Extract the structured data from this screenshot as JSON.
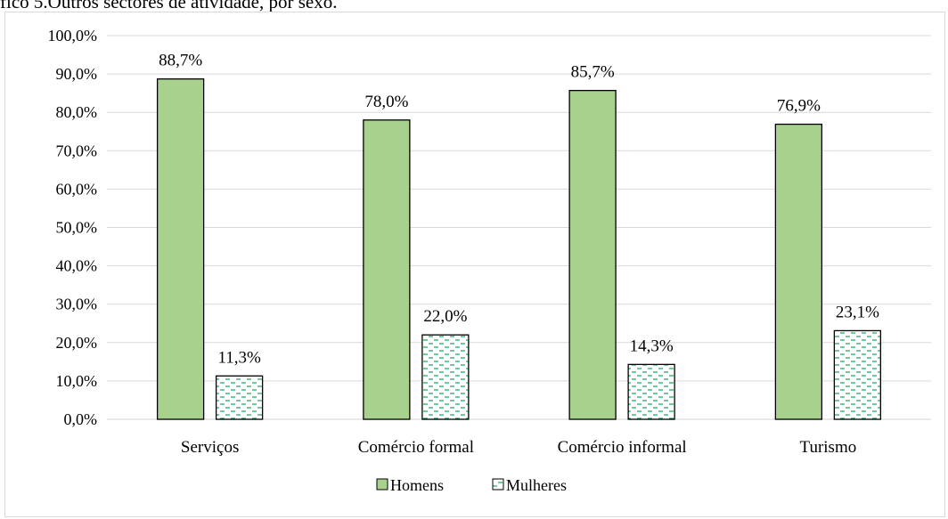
{
  "caption": "fico 5.Outros sectores de atividade, por sexo.",
  "colors": {
    "homens": "#a9d18e",
    "mulheres_pattern": "#00b050",
    "gridline": "#d9d9d9"
  },
  "chart_data": {
    "type": "bar",
    "title": "",
    "xlabel": "",
    "ylabel": "",
    "categories": [
      "Serviços",
      "Comércio formal",
      "Comércio informal",
      "Turismo"
    ],
    "series": [
      {
        "name": "Homens",
        "values": [
          88.7,
          78.0,
          85.7,
          76.9
        ],
        "labels": [
          "88,7%",
          "78,0%",
          "85,7%",
          "76,9%"
        ],
        "fill": "solid"
      },
      {
        "name": "Mulheres",
        "values": [
          11.3,
          22.0,
          14.3,
          23.1
        ],
        "labels": [
          "11,3%",
          "22,0%",
          "14,3%",
          "23,1%"
        ],
        "fill": "dashed-pattern"
      }
    ],
    "ylim": [
      0,
      100
    ],
    "yticks": [
      0,
      10,
      20,
      30,
      40,
      50,
      60,
      70,
      80,
      90,
      100
    ],
    "ytick_labels": [
      "0,0%",
      "10,0%",
      "20,0%",
      "30,0%",
      "40,0%",
      "50,0%",
      "60,0%",
      "70,0%",
      "80,0%",
      "90,0%",
      "100,0%"
    ],
    "grid": true,
    "legend": "bottom-center"
  }
}
